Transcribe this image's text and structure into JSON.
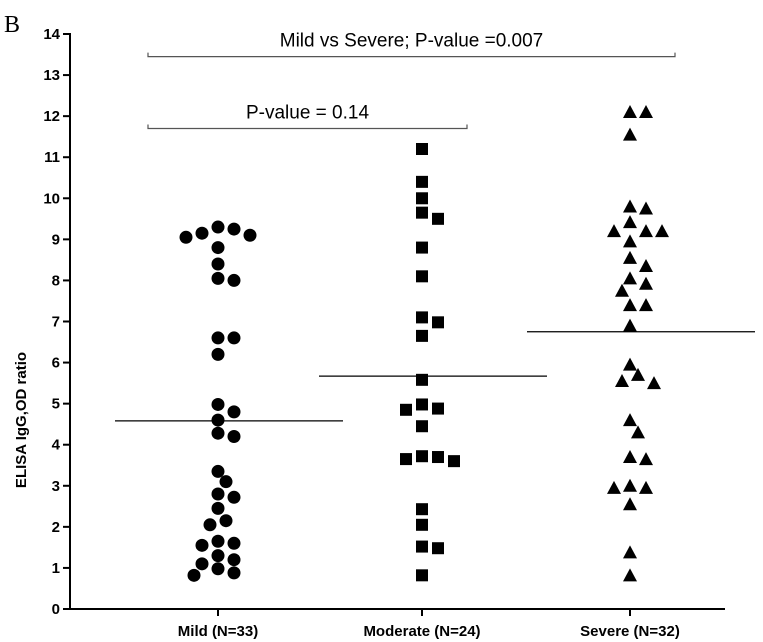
{
  "panel_label": "B",
  "chart_data": {
    "type": "scatter",
    "ylabel": "ELISA IgG,OD ratio",
    "xlabel": "",
    "ylim": [
      0,
      14
    ],
    "yticks": [
      0,
      1,
      2,
      3,
      4,
      5,
      6,
      7,
      8,
      9,
      10,
      11,
      12,
      13,
      14
    ],
    "grid": false,
    "categories": [
      "Mild (N=33)",
      "Moderate (N=24)",
      "Severe (N=32)"
    ],
    "series": [
      {
        "category": "Mild (N=33)",
        "marker": "circle",
        "mean": 4.58,
        "values": [
          9.3,
          9.25,
          9.15,
          9.1,
          9.05,
          8.8,
          8.4,
          8.05,
          8.0,
          6.6,
          6.6,
          6.2,
          4.98,
          4.8,
          4.6,
          4.28,
          4.2,
          3.35,
          3.1,
          2.8,
          2.72,
          2.45,
          2.15,
          2.05,
          1.65,
          1.6,
          1.55,
          1.3,
          1.2,
          1.1,
          0.98,
          0.88,
          0.82
        ]
      },
      {
        "category": "Moderate (N=24)",
        "marker": "square",
        "mean": 5.67,
        "values": [
          11.2,
          10.4,
          10.0,
          9.65,
          9.5,
          8.8,
          8.1,
          7.1,
          6.98,
          6.65,
          5.58,
          4.98,
          4.88,
          4.85,
          4.45,
          3.72,
          3.7,
          3.65,
          3.6,
          2.43,
          2.05,
          1.52,
          1.48,
          0.82
        ]
      },
      {
        "category": "Severe (N=32)",
        "marker": "triangle",
        "mean": 6.75,
        "values": [
          12.1,
          12.1,
          11.55,
          9.8,
          9.75,
          9.42,
          9.2,
          9.2,
          9.2,
          8.95,
          8.55,
          8.35,
          8.05,
          7.92,
          7.75,
          7.4,
          7.4,
          6.9,
          5.95,
          5.7,
          5.55,
          5.5,
          4.6,
          4.3,
          3.7,
          3.65,
          3.0,
          2.95,
          2.95,
          2.55,
          1.38,
          0.82
        ]
      }
    ],
    "annotations": [
      {
        "text": "Mild vs Severe; P-value =0.007",
        "from": "Mild (N=33)",
        "to": "Severe (N=32)",
        "y": 13.45
      },
      {
        "text": "P-value = 0.14",
        "from": "Mild (N=33)",
        "to": "Moderate (N=24)",
        "y": 11.7
      }
    ]
  }
}
